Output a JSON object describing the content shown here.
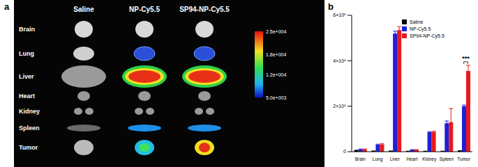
{
  "panel_a": {
    "annotations": [
      "a"
    ],
    "columns": [
      "Saline",
      "NP-Cy5.5",
      "SP94-NP-Cy5.5"
    ],
    "rows": [
      "Brain",
      "Lung",
      "Liver",
      "Heart",
      "Kidney",
      "Spleen",
      "Tumor"
    ],
    "colorbar": {
      "range": [
        5000,
        25000
      ],
      "ticks": [
        {
          "value": 25000,
          "label": "2.5e+004"
        },
        {
          "value": 18000,
          "label": "1.8e+004"
        },
        {
          "value": 12000,
          "label": "1.2e+004"
        },
        {
          "value": 5000,
          "label": "5.0e+003"
        }
      ]
    }
  },
  "chart_data": {
    "type": "bar",
    "annotations": [
      "b",
      "***"
    ],
    "categories": [
      "Brain",
      "Lung",
      "Liver",
      "Heart",
      "Kidney",
      "Spleen",
      "Tumor"
    ],
    "series": [
      {
        "name": "Saline",
        "color": "#000000",
        "values": [
          8000000,
          5000000,
          5000000,
          4000000,
          4000000,
          4000000,
          6000000
        ],
        "errors": [
          0,
          0,
          0,
          0,
          0,
          0,
          0
        ]
      },
      {
        "name": "NP-Cy5.5",
        "color": "#1f1fd6",
        "values": [
          10000000,
          30000000,
          520000000,
          8000000,
          85000000,
          125000000,
          200000000
        ],
        "errors": [
          2000000,
          3000000,
          10000000,
          1000000,
          3000000,
          10000000,
          5000000
        ]
      },
      {
        "name": "SP94-NP-Cy5.5",
        "color": "#e8191f",
        "values": [
          10000000,
          32000000,
          535000000,
          8000000,
          87000000,
          130000000,
          355000000
        ],
        "errors": [
          2000000,
          3000000,
          15000000,
          1000000,
          3000000,
          60000000,
          25000000
        ]
      }
    ],
    "ylim": [
      0,
      600000000
    ],
    "yticks": [
      0,
      {
        "value": 200000000,
        "label": "2×10⁸"
      },
      {
        "value": 400000000,
        "label": "4×10⁸"
      },
      {
        "value": 600000000,
        "label": "6×10⁸"
      }
    ],
    "legend": "upper right"
  }
}
